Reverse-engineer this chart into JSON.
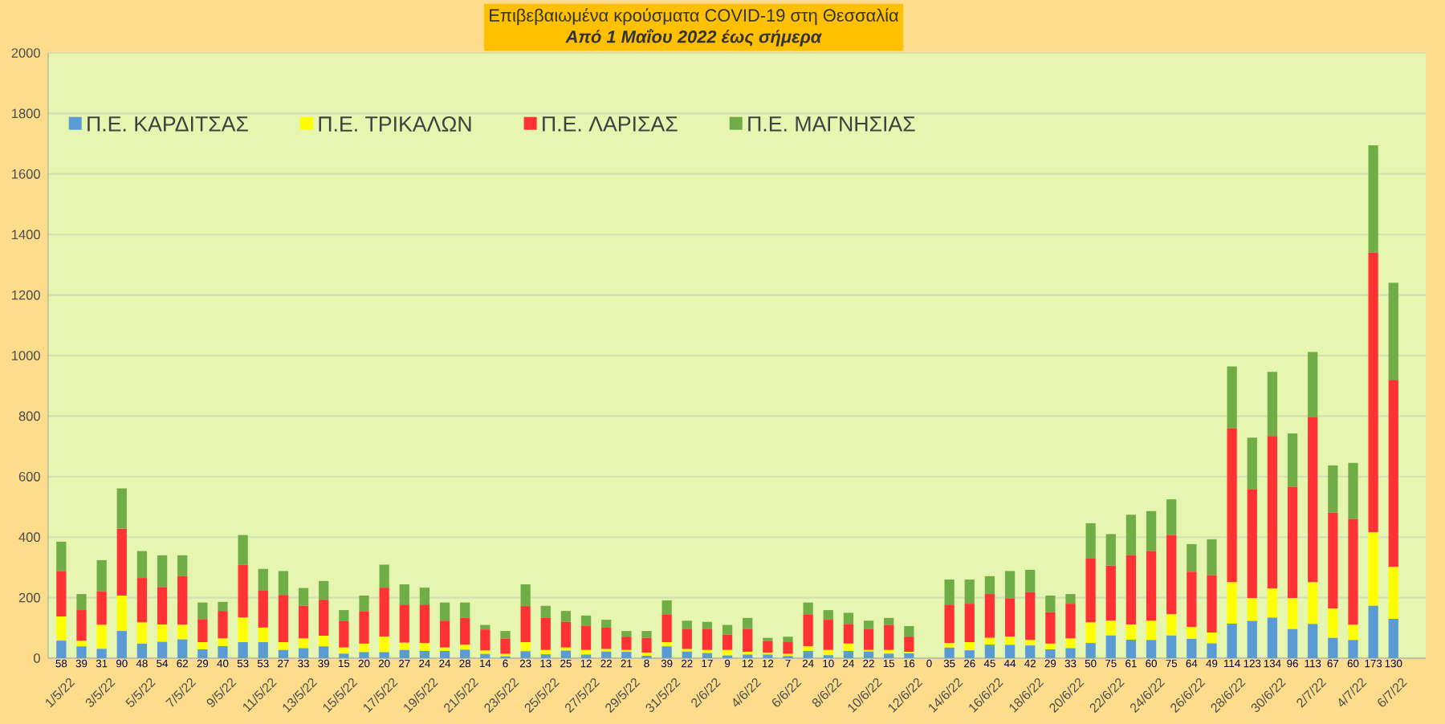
{
  "chart_data": {
    "type": "bar",
    "stacked": true,
    "title": "Επιβεβαιωμένα κρούσματα COVID-19 στη Θεσσαλία",
    "subtitle": "Από 1 Μαΐου 2022 έως σήμερα",
    "categories": [
      "1/5/22",
      null,
      "3/5/22",
      null,
      "5/5/22",
      null,
      "7/5/22",
      null,
      "9/5/22",
      null,
      "11/5/22",
      null,
      "13/5/22",
      null,
      "15/5/22",
      null,
      "17/5/22",
      null,
      "19/5/22",
      null,
      "21/5/22",
      null,
      "23/5/22",
      null,
      "25/5/22",
      null,
      "27/5/22",
      null,
      "29/5/22",
      null,
      "31/5/22",
      null,
      "2/6/22",
      null,
      "4/6/22",
      null,
      "6/6/22",
      null,
      "8/6/22",
      null,
      "10/6/22",
      null,
      "12/6/22",
      null,
      "14/6/22",
      null,
      "16/6/22",
      null,
      "18/6/22",
      null,
      "20/6/22",
      null,
      "22/6/22",
      null,
      "24/6/22",
      null,
      "26/6/22",
      null,
      "28/6/22",
      null,
      "30/6/22",
      null,
      "2/7/22",
      null,
      "4/7/22",
      null,
      "6/7/22"
    ],
    "series": [
      {
        "name": "Π.Ε. ΚΑΡΔΙΤΣΑΣ",
        "color": "#5b9bd5",
        "values": [
          58,
          39,
          31,
          90,
          48,
          54,
          62,
          29,
          40,
          53,
          53,
          27,
          33,
          39,
          15,
          20,
          20,
          27,
          24,
          24,
          28,
          14,
          6,
          23,
          13,
          25,
          12,
          22,
          21,
          8,
          39,
          22,
          17,
          9,
          12,
          12,
          7,
          24,
          10,
          24,
          22,
          15,
          16,
          0,
          35,
          26,
          45,
          44,
          42,
          29,
          33,
          50,
          75,
          61,
          60,
          75,
          64,
          49,
          114,
          123,
          134,
          96,
          113,
          67,
          60,
          173,
          130
        ],
        "value_labels": [
          "58",
          "39",
          "31",
          "90",
          "48",
          "54",
          "62",
          "29",
          "40",
          "53",
          "53",
          "27",
          "33",
          "39",
          "15",
          "20",
          "20",
          "27",
          "24",
          "24",
          "28",
          "14",
          "6",
          "23",
          "13",
          "25",
          "12",
          "22",
          "21",
          "8",
          "39",
          "22",
          "17",
          "9",
          "12",
          "12",
          "7",
          "24",
          "10",
          "24",
          "22",
          "15",
          "16",
          "0",
          "35",
          "26",
          "45",
          "44",
          "42",
          "29",
          "33",
          "50",
          "75",
          "61",
          "60",
          "75",
          "64",
          "49",
          "114",
          "123",
          "134",
          "96",
          "113",
          "67",
          "60",
          "173",
          "130"
        ]
      },
      {
        "name": "Π.Ε. ΤΡΙΚΑΛΩΝ",
        "color": "#ffff00",
        "values": [
          80,
          18,
          79,
          117,
          70,
          57,
          48,
          24,
          25,
          81,
          48,
          26,
          32,
          35,
          20,
          28,
          51,
          24,
          26,
          11,
          16,
          11,
          8,
          30,
          14,
          10,
          15,
          8,
          6,
          10,
          14,
          8,
          10,
          18,
          9,
          6,
          7,
          15,
          17,
          24,
          5,
          12,
          5,
          0,
          15,
          27,
          22,
          27,
          18,
          19,
          32,
          68,
          49,
          50,
          64,
          70,
          39,
          36,
          137,
          75,
          96,
          102,
          138,
          97,
          50,
          243,
          171
        ]
      },
      {
        "name": "Π.Ε. ΛΑΡΙΣΑΣ",
        "color": "#ff3333",
        "values": [
          150,
          102,
          111,
          221,
          147,
          124,
          161,
          76,
          91,
          174,
          122,
          156,
          108,
          119,
          87,
          106,
          162,
          126,
          127,
          89,
          89,
          70,
          51,
          119,
          107,
          85,
          79,
          71,
          44,
          49,
          92,
          67,
          70,
          51,
          76,
          39,
          39,
          106,
          100,
          65,
          70,
          83,
          50,
          0,
          127,
          127,
          145,
          127,
          158,
          104,
          115,
          211,
          182,
          229,
          230,
          262,
          183,
          189,
          509,
          359,
          504,
          368,
          545,
          317,
          350,
          924,
          619
        ]
      },
      {
        "name": "Π.Ε. ΜΑΓΝΗΣΙΑΣ",
        "color": "#70ad47",
        "values": [
          97,
          53,
          103,
          133,
          89,
          105,
          69,
          55,
          30,
          99,
          72,
          79,
          59,
          62,
          37,
          53,
          76,
          67,
          56,
          60,
          51,
          15,
          25,
          72,
          39,
          36,
          35,
          26,
          19,
          23,
          46,
          27,
          23,
          32,
          36,
          10,
          18,
          39,
          32,
          37,
          27,
          23,
          35,
          0,
          83,
          80,
          59,
          90,
          74,
          55,
          32,
          117,
          104,
          134,
          132,
          118,
          91,
          119,
          204,
          172,
          212,
          177,
          216,
          156,
          185,
          355,
          321
        ]
      }
    ],
    "ylim": [
      0,
      2000
    ],
    "yticks": [
      0,
      200,
      400,
      600,
      800,
      1000,
      1200,
      1400,
      1600,
      1800,
      2000
    ],
    "grid": "y",
    "legend": "top left"
  }
}
